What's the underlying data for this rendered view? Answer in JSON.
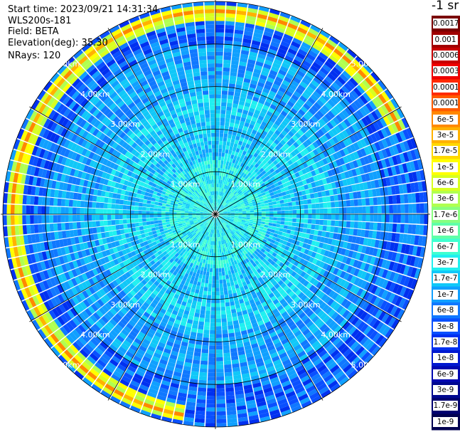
{
  "info": {
    "start_time": "Start time: 2023/09/21 14:31:34",
    "instrument": "WLS200s-181",
    "field": "Field: BETA",
    "elevation": "Elevation(deg): 35.30",
    "nrays": "NRays: 120"
  },
  "colorbar": {
    "title": "-1 sr",
    "labels": [
      "0.0017",
      "0.001",
      "0.0006",
      "0.0003",
      "0.00017",
      "0.0001",
      "6e-5",
      "3e-5",
      "1.7e-5",
      "1e-5",
      "6e-6",
      "3e-6",
      "1.7e-6",
      "1e-6",
      "6e-7",
      "3e-7",
      "1.7e-7",
      "1e-7",
      "6e-8",
      "3e-8",
      "1.7e-8",
      "1e-8",
      "6e-9",
      "3e-9",
      "1.7e-9",
      "1e-9"
    ],
    "colors": [
      "#7a0000",
      "#a00000",
      "#c80000",
      "#ee0000",
      "#ff2a00",
      "#ff5a00",
      "#ff8800",
      "#ffb200",
      "#ffd800",
      "#ffff00",
      "#d8ff20",
      "#b0ff50",
      "#88ff80",
      "#60ffa8",
      "#40ffd0",
      "#20f0f0",
      "#10c8f8",
      "#10a0ff",
      "#1078ff",
      "#0a50ff",
      "#0030f0",
      "#0018d0",
      "#0008b0",
      "#000890",
      "#000070",
      "#000050"
    ]
  },
  "chart_data": {
    "type": "heatmap",
    "projection": "polar-ppi",
    "field": "BETA",
    "units": "-1 sr",
    "nrays": 120,
    "max_range_km": 5.0,
    "range_rings_km": [
      1,
      2,
      3,
      4,
      5
    ],
    "ring_labels": [
      "1.00km",
      "2.00km",
      "3.00km",
      "4.00km",
      "5.00km"
    ],
    "spokes_deg": [
      0,
      30,
      60,
      90,
      120,
      150,
      180,
      210,
      240,
      270,
      300,
      330
    ],
    "colorbar_values": [
      0.0017,
      0.001,
      0.0006,
      0.0003,
      0.00017,
      0.0001,
      6e-05,
      3e-05,
      1.7e-05,
      1e-05,
      6e-06,
      3e-06,
      1.7e-06,
      1e-06,
      6e-07,
      3e-07,
      1.7e-07,
      1e-07,
      6e-08,
      3e-08,
      1.7e-08,
      1e-08,
      6e-09,
      3e-09,
      1.7e-09,
      1e-09
    ],
    "features": [
      {
        "description": "high-backscatter arc",
        "range_km": 4.75,
        "azimuth_from_deg": 190,
        "azimuth_to_deg": 65,
        "level_index": 6
      }
    ]
  }
}
